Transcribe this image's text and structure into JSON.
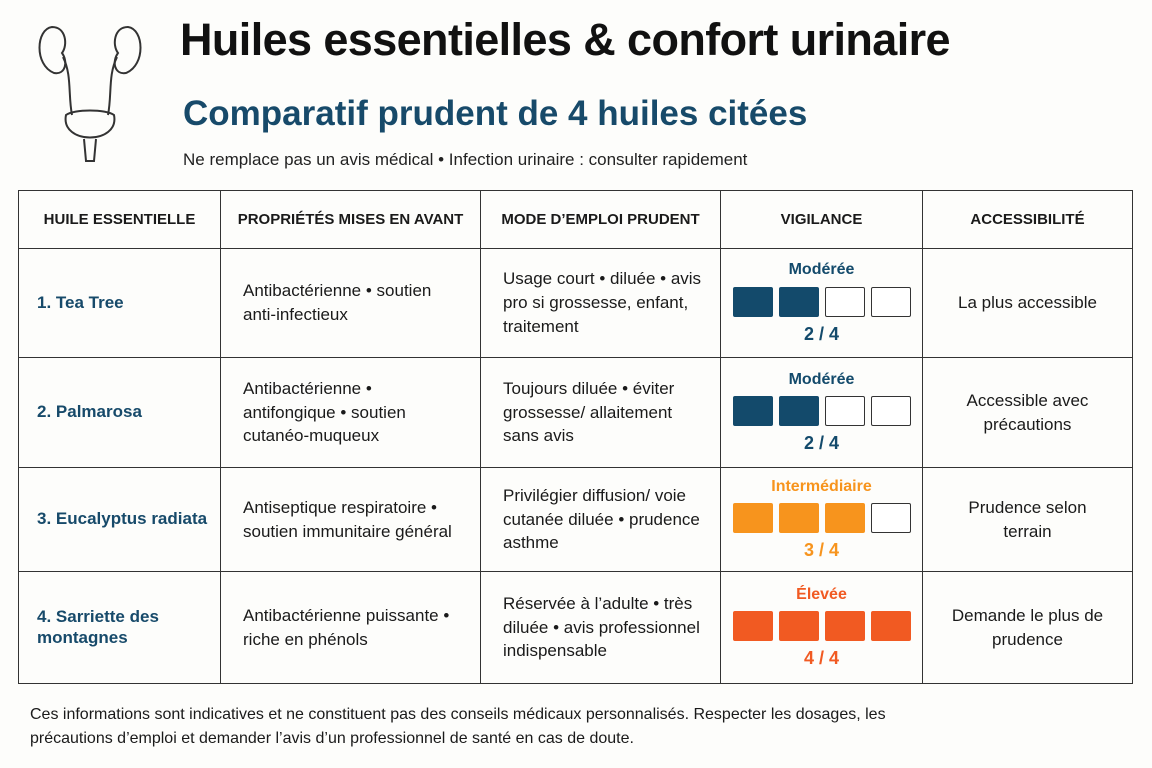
{
  "header": {
    "title": "Huiles essentielles & confort urinaire",
    "subtitle": "Comparatif prudent de 4 huiles citées",
    "note": "Ne remplace pas un avis médical • Infection urinaire : consulter rapidement"
  },
  "table": {
    "headers": [
      "HUILE ESSENTIELLE",
      "PROPRIÉTÉS MISES EN AVANT",
      "MODE D’EMPLOI PRUDENT",
      "VIGILANCE",
      "ACCESSIBILITÉ"
    ],
    "rows": [
      {
        "name": "1. Tea Tree",
        "properties": "Antibactérienne • soutien anti-infectieux",
        "usage": "Usage court • diluée • avis pro si grossesse, enfant, traitement",
        "vigilance": {
          "level": "Modérée",
          "color": "#134a6b",
          "score": {
            "value": 2,
            "max": 4,
            "label": "2 / 4"
          }
        },
        "accessibility": "La plus accessible"
      },
      {
        "name": "2. Palmarosa",
        "properties": "Antibactérienne • antifongique • soutien cutanéo-muqueux",
        "usage": "Toujours diluée • éviter grossesse/ allaitement sans avis",
        "vigilance": {
          "level": "Modérée",
          "color": "#134a6b",
          "score": {
            "value": 2,
            "max": 4,
            "label": "2 / 4"
          }
        },
        "accessibility": "Accessible avec précautions"
      },
      {
        "name": "3. Eucalyptus radiata",
        "properties": "Antiseptique respiratoire • soutien immunitaire général",
        "usage": "Privilégier diffusion/ voie cutanée diluée • prudence asthme",
        "vigilance": {
          "level": "Intermédiaire",
          "color": "#f7941d",
          "score": {
            "value": 3,
            "max": 4,
            "label": "3 / 4"
          }
        },
        "accessibility": "Prudence selon terrain"
      },
      {
        "name": "4. Sarriette des montagnes",
        "properties": "Antibactérienne puissante • riche en phénols",
        "usage": "Réservée à l’adulte • très diluée • avis professionnel indispensable",
        "vigilance": {
          "level": "Élevée",
          "color": "#f15a22",
          "score": {
            "value": 4,
            "max": 4,
            "label": "4 / 4"
          }
        },
        "accessibility": "Demande le plus de prudence"
      }
    ]
  },
  "footer": "Ces informations sont indicatives et ne constituent pas des conseils médicaux personnalisés. Respecter les dosages, les précautions d’emploi et demander l’avis d’un professionnel de santé en cas de doute."
}
